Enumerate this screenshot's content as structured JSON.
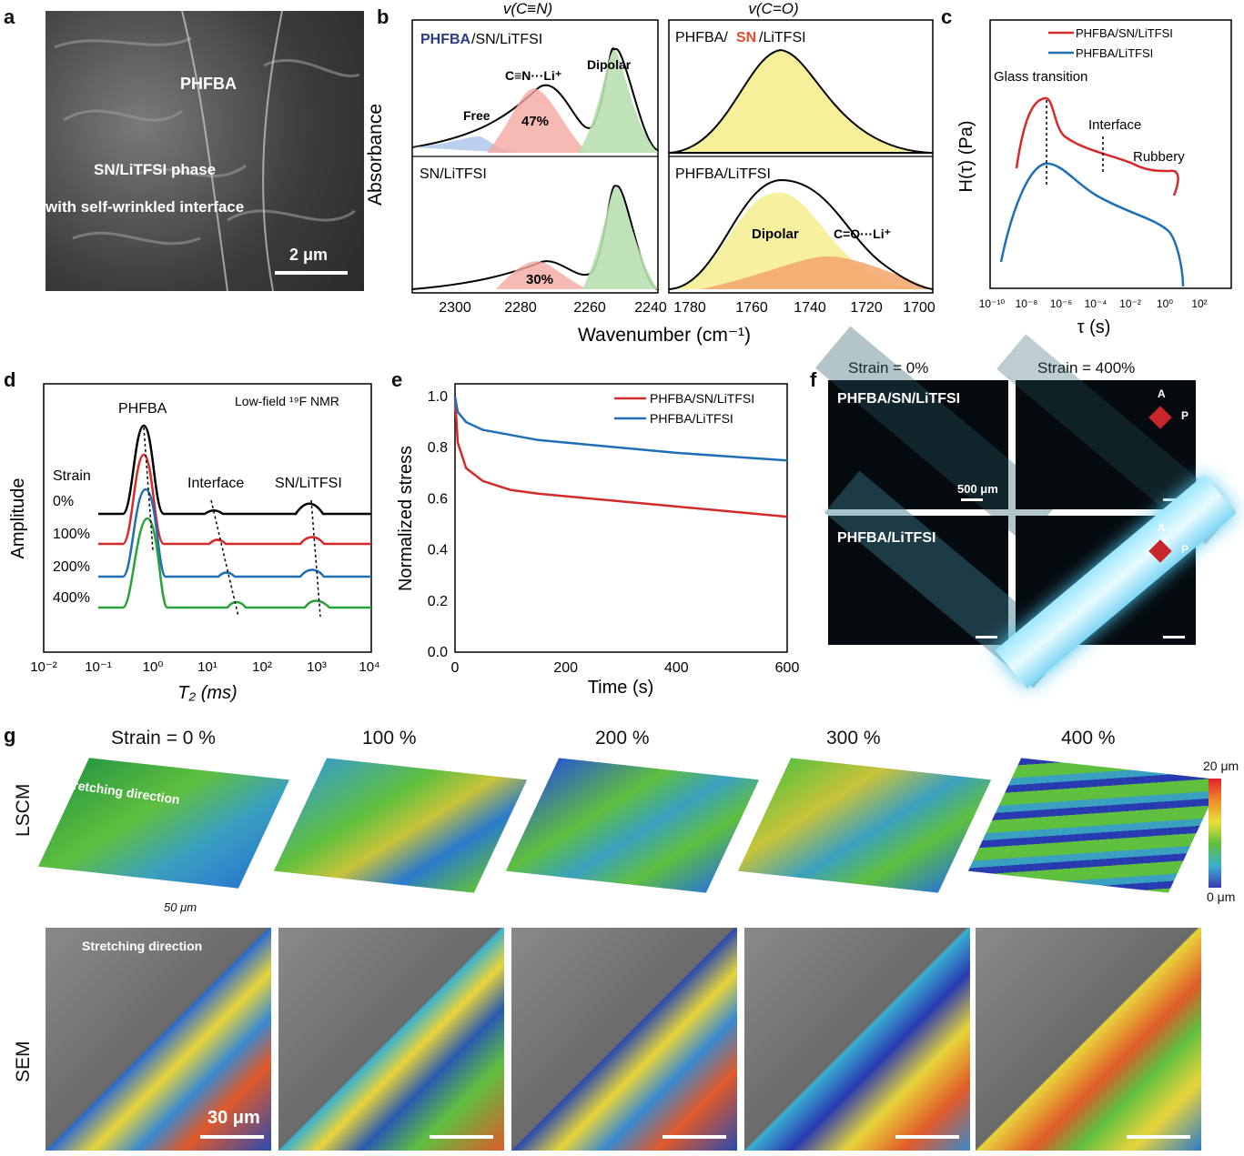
{
  "panels": {
    "a": "a",
    "b": "b",
    "c": "c",
    "d": "d",
    "e": "e",
    "f": "f",
    "g": "g"
  },
  "panel_a": {
    "label_phfba": "PHFBA",
    "label_sn": "SN/LiTFSI phase",
    "label_sn2": "with self-wrinkled interface",
    "scalebar": "2 μm"
  },
  "panel_b": {
    "title_left": "v(C≡N)",
    "title_right": "v(C=O)",
    "tl_label_a": "PHFBA",
    "tl_label_b": "/SN/LiTFSI",
    "tl_free": "Free",
    "tl_cn": "C≡N···Li⁺",
    "tl_pct": "47%",
    "tl_dipolar": "Dipolar",
    "bl_label": "SN/LiTFSI",
    "bl_pct": "30%",
    "tr_label_a": "PHFBA/",
    "tr_label_b": "SN",
    "tr_label_c": "/LiTFSI",
    "br_label": "PHFBA/LiTFSI",
    "br_dipolar": "Dipolar",
    "br_co": "C=O···Li⁺",
    "ylabel": "Absorbance",
    "xlabel": "Wavenumber (cm⁻¹)",
    "xticks_left": [
      "2300",
      "2280",
      "2260",
      "2240"
    ],
    "xticks_right": [
      "1780",
      "1760",
      "1740",
      "1720",
      "1700"
    ]
  },
  "chart_data": [
    {
      "type": "line",
      "panel": "c",
      "xlabel": "τ (s)",
      "ylabel": "H(τ) (Pa)",
      "xscale": "log",
      "xticks": [
        "10⁻¹⁰",
        "10⁻⁸",
        "10⁻⁶",
        "10⁻⁴",
        "10⁻²",
        "10⁰",
        "10²"
      ],
      "series": [
        {
          "name": "PHFBA/SN/LiTFSI",
          "color": "#d42a2a"
        },
        {
          "name": "PHFBA/LiTFSI",
          "color": "#1f6fb5"
        }
      ],
      "annotations": [
        "Glass transition",
        "Interface",
        "Rubbery"
      ]
    },
    {
      "type": "line",
      "panel": "d",
      "xlabel": "T₂ (ms)",
      "ylabel": "Amplitude",
      "xscale": "log",
      "xticks": [
        "10⁻²",
        "10⁻¹",
        "10⁰",
        "10¹",
        "10²",
        "10³",
        "10⁴"
      ],
      "series": [
        {
          "name": "0%",
          "color": "#000000"
        },
        {
          "name": "100%",
          "color": "#d42a2a"
        },
        {
          "name": "200%",
          "color": "#1f6fb5"
        },
        {
          "name": "400%",
          "color": "#2aa23a"
        }
      ],
      "annotations": [
        "PHFBA",
        "Low-field ¹⁹F NMR",
        "Interface",
        "SN/LiTFSI",
        "Strain"
      ]
    },
    {
      "type": "line",
      "panel": "e",
      "xlabel": "Time (s)",
      "ylabel": "Normalized stress",
      "xlim": [
        0,
        600
      ],
      "ylim": [
        0,
        1.0
      ],
      "xticks": [
        "0",
        "200",
        "400",
        "600"
      ],
      "yticks": [
        "0.0",
        "0.2",
        "0.4",
        "0.6",
        "0.8",
        "1.0"
      ],
      "series": [
        {
          "name": "PHFBA/SN/LiTFSI",
          "color": "#d42a2a",
          "x": [
            0,
            5,
            20,
            50,
            100,
            150,
            200,
            300,
            400,
            500,
            600
          ],
          "y": [
            1.0,
            0.82,
            0.72,
            0.67,
            0.635,
            0.62,
            0.61,
            0.59,
            0.57,
            0.55,
            0.53
          ]
        },
        {
          "name": "PHFBA/LiTFSI",
          "color": "#1f6fb5",
          "x": [
            0,
            5,
            20,
            50,
            100,
            150,
            200,
            300,
            400,
            500,
            600
          ],
          "y": [
            1.0,
            0.94,
            0.9,
            0.87,
            0.85,
            0.83,
            0.82,
            0.8,
            0.78,
            0.765,
            0.75
          ]
        }
      ]
    }
  ],
  "panel_c": {
    "legend1": "PHFBA/SN/LiTFSI",
    "legend2": "PHFBA/LiTFSI",
    "ann1": "Glass transition",
    "ann2": "Interface",
    "ann3": "Rubbery",
    "ylabel": "H(τ) (Pa)",
    "xlabel": "τ (s)"
  },
  "panel_d": {
    "title": "Low-field ¹⁹F NMR",
    "phfba": "PHFBA",
    "interface": "Interface",
    "sn": "SN/LiTFSI",
    "strain": "Strain",
    "s0": "0%",
    "s1": "100%",
    "s2": "200%",
    "s3": "400%",
    "ylabel": "Amplitude",
    "xlabel": "T₂ (ms)"
  },
  "panel_e": {
    "legend1": "PHFBA/SN/LiTFSI",
    "legend2": "PHFBA/LiTFSI",
    "ylabel": "Normalized stress",
    "xlabel": "Time (s)"
  },
  "panel_f": {
    "col1": "Strain = 0%",
    "col2": "Strain = 400%",
    "row1": "PHFBA/SN/LiTFSI",
    "row2": "PHFBA/LiTFSI",
    "scale": "500 μm",
    "A": "A",
    "P": "P"
  },
  "panel_g": {
    "cols": [
      "Strain = 0 %",
      "100 %",
      "200 %",
      "300 %",
      "400 %"
    ],
    "row1": "LSCM",
    "row2": "SEM",
    "stretch": "Stretching direction",
    "scale_lscm": "50 μm",
    "scale_sem": "30 μm",
    "cb_top": "20 μm",
    "cb_bot": "0 μm"
  }
}
